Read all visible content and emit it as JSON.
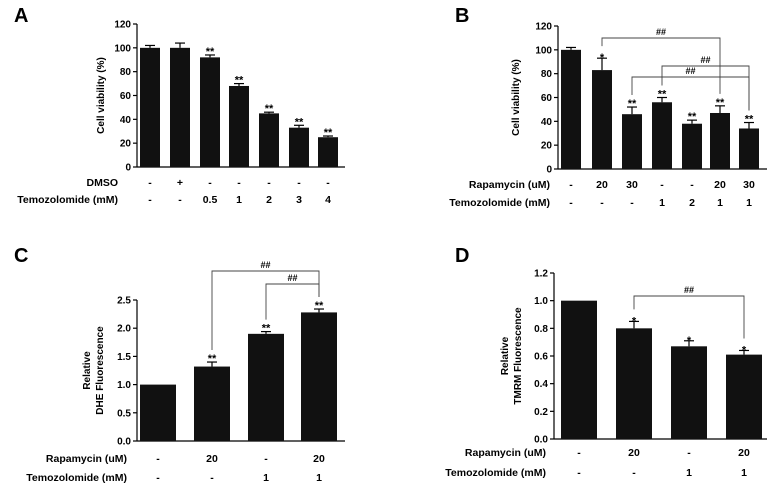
{
  "chart_data": [
    {
      "panel": "A",
      "type": "bar",
      "ylabel": "Cell viability (%)",
      "ylim": [
        0,
        120
      ],
      "yticks": [
        0,
        20,
        40,
        60,
        80,
        100,
        120
      ],
      "values": [
        100,
        100,
        92,
        68,
        45,
        33,
        25
      ],
      "errors": [
        2,
        4,
        2,
        2,
        1,
        2,
        1
      ],
      "significance": [
        "",
        "",
        "**",
        "**",
        "**",
        "**",
        "**"
      ],
      "rows": [
        {
          "label": "DMSO",
          "values": [
            "-",
            "+",
            "-",
            "-",
            "-",
            "-",
            "-"
          ]
        },
        {
          "label": "Temozolomide (mM)",
          "values": [
            "-",
            "-",
            "0.5",
            "1",
            "2",
            "3",
            "4"
          ]
        }
      ],
      "brackets": []
    },
    {
      "panel": "B",
      "type": "bar",
      "ylabel": "Cell viability (%)",
      "ylim": [
        0,
        120
      ],
      "yticks": [
        0,
        20,
        40,
        60,
        80,
        100,
        120
      ],
      "values": [
        100,
        83,
        46,
        56,
        38,
        47,
        34
      ],
      "errors": [
        2,
        10,
        6,
        4,
        3,
        6,
        5
      ],
      "significance": [
        "",
        "*",
        "**",
        "**",
        "**",
        "**",
        "**"
      ],
      "rows": [
        {
          "label": "Rapamycin (uM)",
          "values": [
            "-",
            "20",
            "30",
            "-",
            "-",
            "20",
            "30"
          ]
        },
        {
          "label": "Temozolomide (mM)",
          "values": [
            "-",
            "-",
            "-",
            "1",
            "2",
            "1",
            "1"
          ]
        }
      ],
      "brackets": [
        {
          "from": 1,
          "to": 5,
          "label": "##"
        },
        {
          "from": 3,
          "to": 6,
          "label": "##"
        },
        {
          "from": 2,
          "to": 6,
          "label": "##"
        }
      ]
    },
    {
      "panel": "C",
      "type": "bar",
      "ylabel": "Relative DHE Fluorescence",
      "ylim": [
        0,
        2.5
      ],
      "yticks": [
        "0.0",
        "0.5",
        "1.0",
        "1.5",
        "2.0",
        "2.5"
      ],
      "values": [
        1.0,
        1.32,
        1.9,
        2.28
      ],
      "errors": [
        0,
        0.08,
        0.04,
        0.06
      ],
      "significance": [
        "",
        "**",
        "**",
        "**"
      ],
      "rows": [
        {
          "label": "Rapamycin (uM)",
          "values": [
            "-",
            "20",
            "-",
            "20"
          ]
        },
        {
          "label": "Temozolomide (mM)",
          "values": [
            "-",
            "-",
            "1",
            "1"
          ]
        }
      ],
      "brackets": [
        {
          "from": 1,
          "to": 3,
          "label": "##"
        },
        {
          "from": 2,
          "to": 3,
          "label": "##"
        }
      ]
    },
    {
      "panel": "D",
      "type": "bar",
      "ylabel": "Relative TMRM Fluorescence",
      "ylim": [
        0,
        1.2
      ],
      "yticks": [
        "0.0",
        "0.2",
        "0.4",
        "0.6",
        "0.8",
        "1.0",
        "1.2"
      ],
      "values": [
        1.0,
        0.8,
        0.67,
        0.61
      ],
      "errors": [
        0,
        0.05,
        0.04,
        0.03
      ],
      "significance": [
        "",
        "*",
        "*",
        "*"
      ],
      "rows": [
        {
          "label": "Rapamycin (uM)",
          "values": [
            "-",
            "20",
            "-",
            "20"
          ]
        },
        {
          "label": "Temozolomide (mM)",
          "values": [
            "-",
            "-",
            "1",
            "1"
          ]
        }
      ],
      "brackets": [
        {
          "from": 1,
          "to": 3,
          "label": "##"
        }
      ]
    }
  ]
}
